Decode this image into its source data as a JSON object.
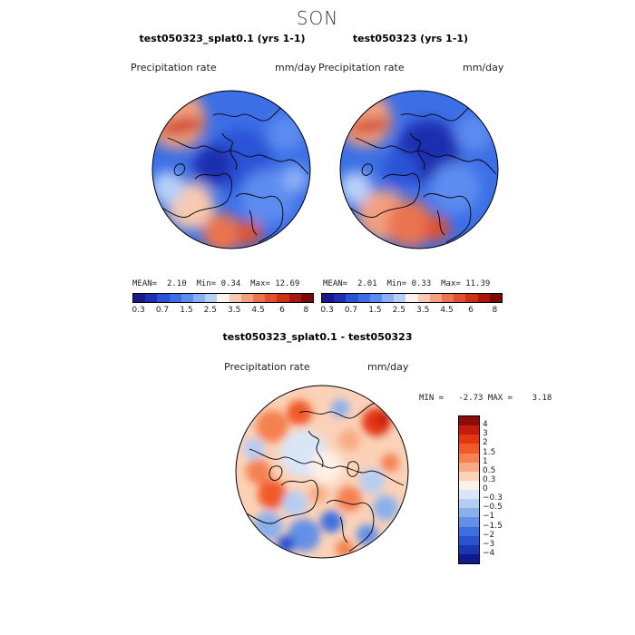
{
  "season": "SON",
  "panels": {
    "left": {
      "title": "test050323_splat0.1 (yrs 1-1)",
      "variable": "Precipitation rate",
      "units": "mm/day",
      "stats": {
        "mean_label": "MEAN=",
        "mean": "2.10",
        "min_label": "Min=",
        "min": "0.34",
        "max_label": "Max=",
        "max": "12.69"
      }
    },
    "right": {
      "title": "test050323 (yrs 1-1)",
      "variable": "Precipitation rate",
      "units": "mm/day",
      "stats": {
        "mean_label": "MEAN=",
        "mean": "2.01",
        "min_label": "Min=",
        "min": "0.33",
        "max_label": "Max=",
        "max": "11.39"
      }
    },
    "diff": {
      "title": "test050323_splat0.1 - test050323",
      "variable": "Precipitation rate",
      "units": "mm/day",
      "minmax_text": "MIN =   -2.73 MAX =    3.18"
    }
  },
  "colorbar_abs": {
    "colors": [
      "#1a1a8c",
      "#1e2fb0",
      "#2a52d6",
      "#3c6fe6",
      "#5b8cf0",
      "#88aef5",
      "#b8d0f8",
      "#fdf3ec",
      "#f7c9b0",
      "#f2a080",
      "#ea7350",
      "#e05030",
      "#cc3015",
      "#a8170d",
      "#7a0a05"
    ],
    "tick_labels": [
      "0.3",
      "0.7",
      "1.5",
      "2.5",
      "3.5",
      "4.5",
      "6",
      "8"
    ]
  },
  "colorbar_diff": {
    "colors": [
      "#8b0a0a",
      "#c41a0f",
      "#e33714",
      "#f05a28",
      "#f58050",
      "#f8ab82",
      "#fbd2b8",
      "#fdf0e6",
      "#d9e6f7",
      "#b6cdf2",
      "#8ab0ec",
      "#6390e6",
      "#3c6fe0",
      "#2a52cf",
      "#1c35b0",
      "#0d1a8c"
    ],
    "tick_labels": [
      "4",
      "3",
      "2",
      "1.5",
      "1",
      "0.5",
      "0.3",
      "0",
      "−0.3",
      "−0.5",
      "−1",
      "−1.5",
      "−2",
      "−3",
      "−4"
    ]
  },
  "chart_data": [
    {
      "type": "heatmap",
      "title": "test050323_splat0.1 (yrs 1-1)",
      "variable": "Precipitation rate",
      "units": "mm/day",
      "projection": "north polar stereographic",
      "mean": 2.1,
      "min": 0.34,
      "max": 12.69,
      "colorbar_levels": [
        0.3,
        0.7,
        1.5,
        2.5,
        3.5,
        4.5,
        6,
        8
      ]
    },
    {
      "type": "heatmap",
      "title": "test050323 (yrs 1-1)",
      "variable": "Precipitation rate",
      "units": "mm/day",
      "projection": "north polar stereographic",
      "mean": 2.01,
      "min": 0.33,
      "max": 11.39,
      "colorbar_levels": [
        0.3,
        0.7,
        1.5,
        2.5,
        3.5,
        4.5,
        6,
        8
      ]
    },
    {
      "type": "heatmap",
      "title": "test050323_splat0.1 - test050323",
      "variable": "Precipitation rate",
      "units": "mm/day",
      "projection": "north polar stereographic",
      "min": -2.73,
      "max": 3.18,
      "colorbar_levels": [
        -4,
        -3,
        -2,
        -1.5,
        -1,
        -0.5,
        -0.3,
        0,
        0.3,
        0.5,
        1,
        1.5,
        2,
        3,
        4
      ]
    }
  ]
}
